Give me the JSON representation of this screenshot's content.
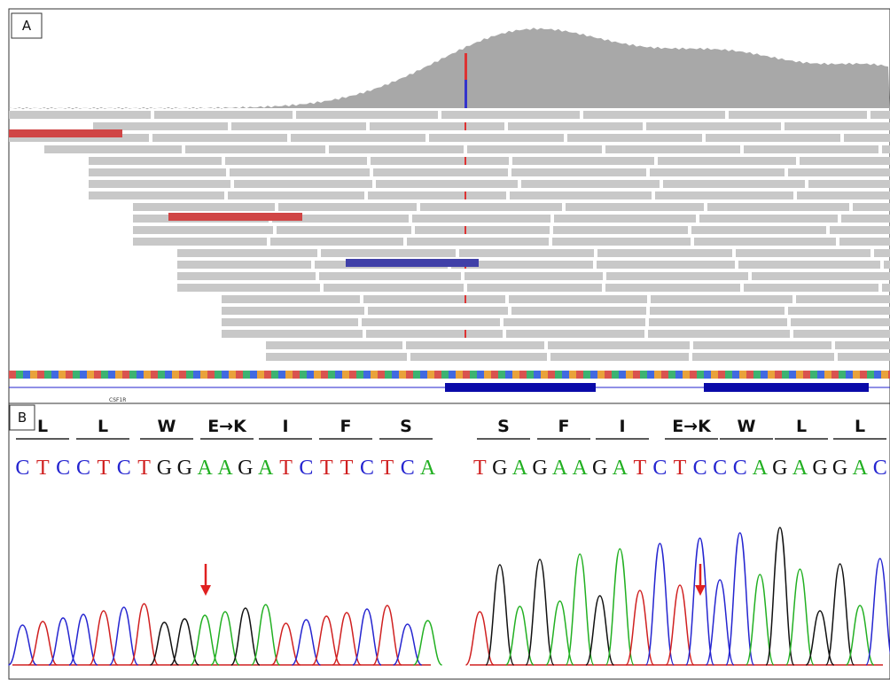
{
  "panel_a": {
    "label": "A",
    "gene": "CSF1R"
  },
  "panel_b": {
    "label": "B",
    "left": {
      "amino_acids": [
        "L",
        "L",
        "W",
        "E→K",
        "I",
        "F",
        "S"
      ],
      "bases": [
        "C",
        "T",
        "C",
        "C",
        "T",
        "C",
        "T",
        "G",
        "G",
        "A",
        "A",
        "G",
        "A",
        "T",
        "C",
        "T",
        "T",
        "C",
        "T",
        "C",
        "A"
      ]
    },
    "right": {
      "amino_acids": [
        "S",
        "F",
        "I",
        "E→K",
        "W",
        "L",
        "L"
      ],
      "bases": [
        "T",
        "G",
        "A",
        "G",
        "A",
        "A",
        "G",
        "A",
        "T",
        "C",
        "T",
        "C",
        "C",
        "C",
        "A",
        "G",
        "A",
        "G",
        "G",
        "A",
        "C"
      ]
    }
  }
}
